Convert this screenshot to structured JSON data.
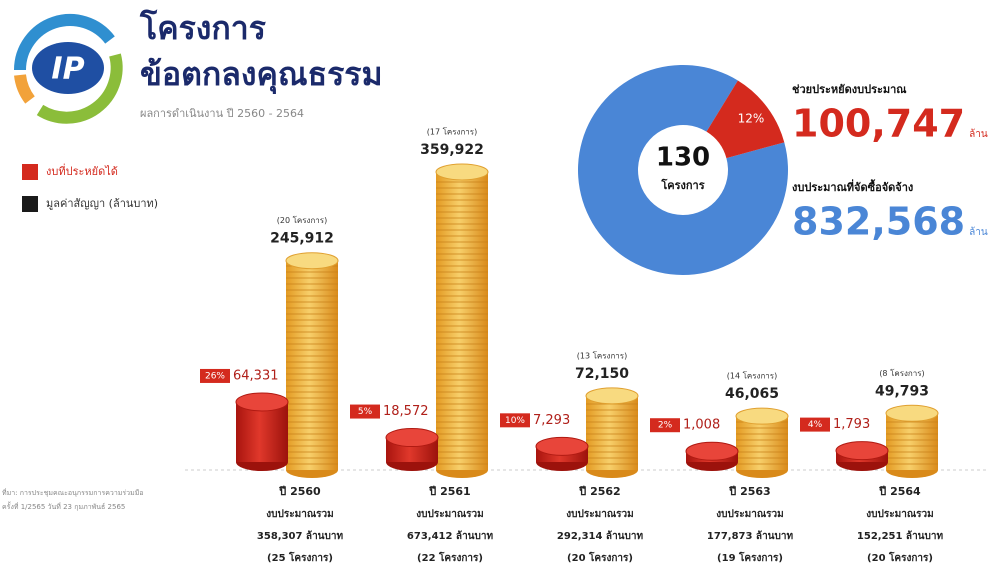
{
  "header": {
    "title_line1": "โครงการ",
    "title_line2": "ข้อตกลงคุณธรรม",
    "subtitle": "ผลการดำเนินงาน ปี 2560 - 2564",
    "logo_text": "IP"
  },
  "source_note": [
    "ที่มา: การประชุมคณะอนุกรรมการความร่วมมือ",
    "ครั้งที่ 1/2565 วันที่ 23 กุมภาพันธ์ 2565"
  ],
  "chart_data": [
    {
      "type": "bar",
      "categories": [
        "ปี 2560",
        "ปี 2561",
        "ปี 2562",
        "ปี 2563",
        "ปี 2564"
      ],
      "series": [
        {
          "name": "งบที่ประหยัดได้",
          "color": "#d42a1e",
          "values": [
            64331,
            18572,
            7293,
            1008,
            1793
          ],
          "value_labels": [
            "64,331",
            "18,572",
            "7,293",
            "1,008",
            "1,793"
          ]
        },
        {
          "name": "มูลค่าสัญญา (ล้านบาท)",
          "color": "#1a1a1a",
          "mark_color": "#f0b43c",
          "values": [
            245912,
            359922,
            72150,
            46065,
            49793
          ],
          "value_labels": [
            "245,912",
            "359,922",
            "72,150",
            "46,065",
            "49,793"
          ]
        }
      ],
      "savings_percent": {
        "values": [
          26,
          5,
          10,
          2,
          4
        ],
        "value_labels": [
          "26%",
          "5%",
          "10%",
          "2%",
          "4%"
        ]
      },
      "contract_projects": [
        "(20 โครงการ)",
        "(17 โครงการ)",
        "(13 โครงการ)",
        "(14 โครงการ)",
        "(8 โครงการ)"
      ],
      "budget_heading": "งบประมาณรวม",
      "budget_labels": [
        "358,307 ล้านบาท",
        "673,412 ล้านบาท",
        "292,314 ล้านบาท",
        "177,873 ล้านบาท",
        "152,251 ล้านบาท"
      ],
      "budget_projects": [
        "(25 โครงการ)",
        "(22 โครงการ)",
        "(20 โครงการ)",
        "(19 โครงการ)",
        "(20 โครงการ)"
      ]
    },
    {
      "type": "pie",
      "total": 130,
      "total_label": "โครงการ",
      "percent": {
        "value": 12,
        "label": "12%"
      },
      "items": [
        {
          "name": "ช่วยประหยัดงบประมาณ",
          "value": 100747,
          "value_label": "100,747",
          "unit": "ล้านบาท",
          "color": "#d42a1e"
        },
        {
          "name": "งบประมาณที่จัดซื้อจัดจ้าง",
          "value": 832568,
          "value_label": "832,568",
          "unit": "ล้านบาท",
          "color": "#4a86d6"
        }
      ]
    }
  ]
}
